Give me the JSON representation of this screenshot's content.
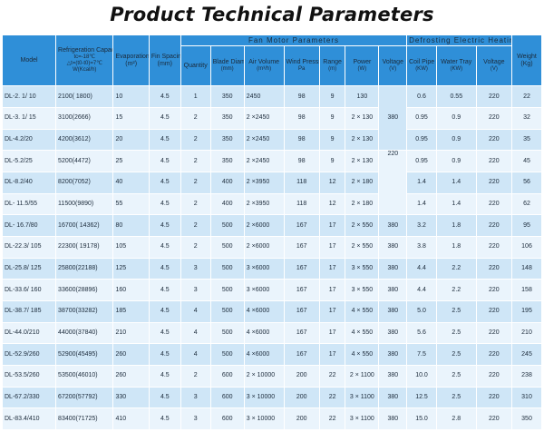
{
  "title": "Product Technical Parameters",
  "table": {
    "h_model": "Model",
    "h_refrigeration": "Refrigeration Capacity",
    "h_refrigeration_cond1": "tc=-18℃",
    "h_refrigeration_cond2": "△t=(t0-t0)=7℃",
    "h_refrigeration_unit": "W(Kcal/h)",
    "h_evap": "Evaporation Area",
    "h_evap_unit": "(m²)",
    "h_fin": "Fin Spacing",
    "h_fin_unit": "(mm)",
    "h_fan_group": "Fan Motor Parameters",
    "h_quantity": "Quantity",
    "h_blade": "Blade Diameter",
    "h_blade_unit": "(mm)",
    "h_air": "Air Volume",
    "h_air_unit": "(m³/h)",
    "h_wind": "Wind Presssure",
    "h_wind_unit": "Pa",
    "h_range": "Range",
    "h_range_unit": "(m)",
    "h_power": "Power",
    "h_power_unit": "(W)",
    "h_voltage": "Voltage",
    "h_voltage_unit": "(V)",
    "h_defrost_group": "Defrosting Electric Heating Tube Parameters",
    "h_coil": "Coil Pipe",
    "h_coil_unit": "(KW)",
    "h_water": "Water Tray",
    "h_water_unit": "(KW)",
    "h_dvoltage": "Voltage",
    "h_dvoltage_unit": "(V)",
    "h_weight": "Weight",
    "h_weight_unit": "(Kg)",
    "fan_voltage_380_top": "380",
    "fan_voltage_220": "220",
    "rows": [
      {
        "model": "DL-2. 1/ 10",
        "cap": "2100( 1800)",
        "area": "10",
        "fin": "4.5",
        "qty": "1",
        "blade": "350",
        "air": "2450",
        "wind": "98",
        "range": "9",
        "power": "130",
        "volt": "",
        "coil": "0.6",
        "water": "0.55",
        "dvolt": "220",
        "weight": "22"
      },
      {
        "model": "DL-3. 1/ 15",
        "cap": "3100(2666)",
        "area": "15",
        "fin": "4.5",
        "qty": "2",
        "blade": "350",
        "air": "2 ×2450",
        "wind": "98",
        "range": "9",
        "power": "2 × 130",
        "volt": "",
        "coil": "0.95",
        "water": "0.9",
        "dvolt": "220",
        "weight": "32"
      },
      {
        "model": "DL-4.2/20",
        "cap": "4200(3612)",
        "area": "20",
        "fin": "4.5",
        "qty": "2",
        "blade": "350",
        "air": "2 ×2450",
        "wind": "98",
        "range": "9",
        "power": "2 × 130",
        "volt": "",
        "coil": "0.95",
        "water": "0.9",
        "dvolt": "220",
        "weight": "35"
      },
      {
        "model": "DL-5.2/25",
        "cap": "5200(4472)",
        "area": "25",
        "fin": "4.5",
        "qty": "2",
        "blade": "350",
        "air": "2 ×2450",
        "wind": "98",
        "range": "9",
        "power": "2 × 130",
        "volt": "",
        "coil": "0.95",
        "water": "0.9",
        "dvolt": "220",
        "weight": "45"
      },
      {
        "model": "DL-8.2/40",
        "cap": "8200(7052)",
        "area": "40",
        "fin": "4.5",
        "qty": "2",
        "blade": "400",
        "air": "2 ×3950",
        "wind": "118",
        "range": "12",
        "power": "2 × 180",
        "volt": "",
        "coil": "1.4",
        "water": "1.4",
        "dvolt": "220",
        "weight": "56"
      },
      {
        "model": "DL- 11.5/55",
        "cap": "11500(9890)",
        "area": "55",
        "fin": "4.5",
        "qty": "2",
        "blade": "400",
        "air": "2 ×3950",
        "wind": "118",
        "range": "12",
        "power": "2 × 180",
        "volt": "",
        "coil": "1.4",
        "water": "1.4",
        "dvolt": "220",
        "weight": "62"
      },
      {
        "model": "DL- 16.7/80",
        "cap": "16700( 14362)",
        "area": "80",
        "fin": "4.5",
        "qty": "2",
        "blade": "500",
        "air": "2 ×6000",
        "wind": "167",
        "range": "17",
        "power": "2 × 550",
        "volt": "380",
        "coil": "3.2",
        "water": "1.8",
        "dvolt": "220",
        "weight": "95"
      },
      {
        "model": "DL-22.3/ 105",
        "cap": "22300( 19178)",
        "area": "105",
        "fin": "4.5",
        "qty": "2",
        "blade": "500",
        "air": "2 ×6000",
        "wind": "167",
        "range": "17",
        "power": "2 × 550",
        "volt": "380",
        "coil": "3.8",
        "water": "1.8",
        "dvolt": "220",
        "weight": "106"
      },
      {
        "model": "DL-25.8/ 125",
        "cap": "25800(22188)",
        "area": "125",
        "fin": "4.5",
        "qty": "3",
        "blade": "500",
        "air": "3 ×6000",
        "wind": "167",
        "range": "17",
        "power": "3 × 550",
        "volt": "380",
        "coil": "4.4",
        "water": "2.2",
        "dvolt": "220",
        "weight": "148"
      },
      {
        "model": "DL-33.6/ 160",
        "cap": "33600(28896)",
        "area": "160",
        "fin": "4.5",
        "qty": "3",
        "blade": "500",
        "air": "3 ×6000",
        "wind": "167",
        "range": "17",
        "power": "3 × 550",
        "volt": "380",
        "coil": "4.4",
        "water": "2.2",
        "dvolt": "220",
        "weight": "158"
      },
      {
        "model": "DL-38.7/ 185",
        "cap": "38700(33282)",
        "area": "185",
        "fin": "4.5",
        "qty": "4",
        "blade": "500",
        "air": "4 ×6000",
        "wind": "167",
        "range": "17",
        "power": "4 × 550",
        "volt": "380",
        "coil": "5.0",
        "water": "2.5",
        "dvolt": "220",
        "weight": "195"
      },
      {
        "model": "DL-44.0/210",
        "cap": "44000(37840)",
        "area": "210",
        "fin": "4.5",
        "qty": "4",
        "blade": "500",
        "air": "4 ×6000",
        "wind": "167",
        "range": "17",
        "power": "4 × 550",
        "volt": "380",
        "coil": "5.6",
        "water": "2.5",
        "dvolt": "220",
        "weight": "210"
      },
      {
        "model": "DL-52.9/260",
        "cap": "52900(45495)",
        "area": "260",
        "fin": "4.5",
        "qty": "4",
        "blade": "500",
        "air": "4 ×6000",
        "wind": "167",
        "range": "17",
        "power": "4 × 550",
        "volt": "380",
        "coil": "7.5",
        "water": "2.5",
        "dvolt": "220",
        "weight": "245"
      },
      {
        "model": "DL-53.5/260",
        "cap": "53500(46010)",
        "area": "260",
        "fin": "4.5",
        "qty": "2",
        "blade": "600",
        "air": "2 × 10000",
        "wind": "200",
        "range": "22",
        "power": "2 × 1100",
        "volt": "380",
        "coil": "10.0",
        "water": "2.5",
        "dvolt": "220",
        "weight": "238"
      },
      {
        "model": "DL-67.2/330",
        "cap": "67200(57792)",
        "area": "330",
        "fin": "4.5",
        "qty": "3",
        "blade": "600",
        "air": "3 × 10000",
        "wind": "200",
        "range": "22",
        "power": "3 × 1100",
        "volt": "380",
        "coil": "12.5",
        "water": "2.5",
        "dvolt": "220",
        "weight": "310"
      },
      {
        "model": "DL-83.4/410",
        "cap": "83400(71725)",
        "area": "410",
        "fin": "4.5",
        "qty": "3",
        "blade": "600",
        "air": "3 × 10000",
        "wind": "200",
        "range": "22",
        "power": "3 × 1100",
        "volt": "380",
        "coil": "15.0",
        "water": "2.8",
        "dvolt": "220",
        "weight": "350"
      }
    ]
  }
}
